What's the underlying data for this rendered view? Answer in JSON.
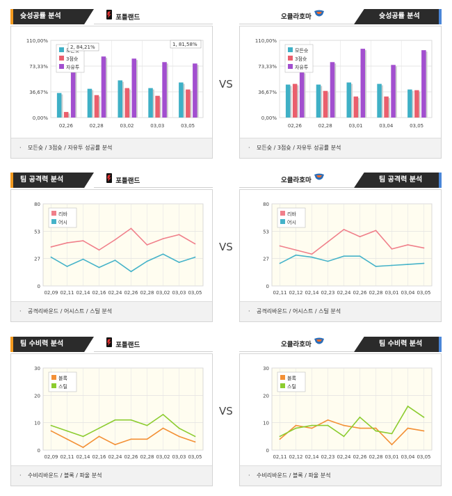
{
  "vs_label": "VS",
  "colors": {
    "accent_orange": "#f39a1f",
    "accent_blue": "#4a86d8",
    "header_bg": "#2b2b2b"
  },
  "panels": [
    {
      "id": "p1",
      "side": "left",
      "header": "슛성공률 분석",
      "team": "포틀랜드",
      "team_logo": "trail-blazers-logo",
      "footer": "모든슛 / 3점슛 / 자유투 성공률 분석"
    },
    {
      "id": "p2",
      "side": "right",
      "header": "슛성공률 분석",
      "team": "오클라호마",
      "team_logo": "thunder-logo",
      "footer": "모든슛 / 3점슛 / 자유투 성공률 분석"
    },
    {
      "id": "p3",
      "side": "left",
      "header": "팀 공격력 분석",
      "team": "포틀랜드",
      "team_logo": "trail-blazers-logo",
      "footer": "공격리바운드 / 어시스트 / 스틸 분석"
    },
    {
      "id": "p4",
      "side": "right",
      "header": "팀 공격력 분석",
      "team": "오클라호마",
      "team_logo": "thunder-logo",
      "footer": "공격리바운드 / 어시스트 / 스틸 분석"
    },
    {
      "id": "p5",
      "side": "left",
      "header": "팀 수비력 분석",
      "team": "포틀랜드",
      "team_logo": "trail-blazers-logo",
      "footer": "수비리바운드 / 블록 / 파울 분석"
    },
    {
      "id": "p6",
      "side": "right",
      "header": "팀 수비력 분석",
      "team": "오클라호마",
      "team_logo": "thunder-logo",
      "footer": "수비리바운드 / 블록 / 파울 분석"
    }
  ],
  "chart_data": [
    {
      "type": "bar",
      "categories": [
        "02,26",
        "02,28",
        "03,02",
        "03,03",
        "03,05"
      ],
      "ylim": [
        0,
        110
      ],
      "yticks": [
        "0,00%",
        "36,67%",
        "73,33%",
        "110,00%"
      ],
      "series": [
        {
          "name": "모든슛",
          "color": "#3fb0c6",
          "values": [
            35,
            41,
            53,
            42,
            50
          ]
        },
        {
          "name": "3점슛",
          "color": "#ea5f6d",
          "values": [
            8,
            32,
            42,
            31,
            40
          ]
        },
        {
          "name": "자유투",
          "color": "#a24fcf",
          "values": [
            84,
            87,
            84,
            79,
            77
          ]
        }
      ],
      "annotations": [
        "2, 84,21%",
        "1, 81,58%"
      ],
      "grid": true,
      "legend": "top-left"
    },
    {
      "type": "bar",
      "categories": [
        "02,26",
        "02,28",
        "03,01",
        "03,04",
        "03,05"
      ],
      "ylim": [
        0,
        110
      ],
      "yticks": [
        "0,00%",
        "36,67%",
        "73,33%",
        "110,00%"
      ],
      "series": [
        {
          "name": "모든슛",
          "color": "#3fb0c6",
          "values": [
            47,
            47,
            50,
            48,
            40
          ]
        },
        {
          "name": "3점슛",
          "color": "#ea5f6d",
          "values": [
            48,
            38,
            30,
            30,
            39
          ]
        },
        {
          "name": "자유투",
          "color": "#a24fcf",
          "values": [
            65,
            79,
            98,
            75,
            96
          ]
        }
      ],
      "grid": true,
      "legend": "top-left"
    },
    {
      "type": "line",
      "categories": [
        "02,09",
        "02,11",
        "02,14",
        "02,16",
        "02,24",
        "02,26",
        "02,28",
        "03,02",
        "03,03",
        "03,05"
      ],
      "ylim": [
        0,
        80
      ],
      "yticks": [
        "0",
        "27",
        "53",
        "80"
      ],
      "series": [
        {
          "name": "리바",
          "color": "#f07f8a",
          "values": [
            38,
            42,
            44,
            35,
            45,
            56,
            40,
            46,
            50,
            41
          ]
        },
        {
          "name": "어시",
          "color": "#45b3c9",
          "values": [
            28,
            19,
            26,
            18,
            25,
            14,
            24,
            31,
            23,
            28
          ]
        }
      ],
      "grid": true,
      "legend": "top-left"
    },
    {
      "type": "line",
      "categories": [
        "02,11",
        "02,12",
        "02,14",
        "02,23",
        "02,24",
        "02,26",
        "02,28",
        "03,01",
        "03,04",
        "03,05"
      ],
      "ylim": [
        0,
        80
      ],
      "yticks": [
        "0",
        "27",
        "53",
        "80"
      ],
      "series": [
        {
          "name": "리바",
          "color": "#f07f8a",
          "values": [
            39,
            35,
            31,
            43,
            55,
            48,
            54,
            36,
            40,
            37
          ]
        },
        {
          "name": "어시",
          "color": "#45b3c9",
          "values": [
            22,
            30,
            28,
            24,
            29,
            29,
            19,
            20,
            21,
            22
          ]
        }
      ],
      "grid": true,
      "legend": "top-left"
    },
    {
      "type": "line",
      "categories": [
        "02,09",
        "02,11",
        "02,14",
        "02,16",
        "02,24",
        "02,26",
        "02,28",
        "03,02",
        "03,03",
        "03,05"
      ],
      "ylim": [
        0,
        30
      ],
      "yticks": [
        "0",
        "10",
        "20",
        "30"
      ],
      "series": [
        {
          "name": "블록",
          "color": "#f39035",
          "values": [
            7,
            4,
            1,
            5,
            2,
            4,
            4,
            8,
            5,
            3
          ]
        },
        {
          "name": "스틸",
          "color": "#8ccc2f",
          "values": [
            9,
            7,
            5,
            8,
            11,
            11,
            9,
            13,
            8,
            5
          ]
        }
      ],
      "grid": true,
      "legend": "top-left"
    },
    {
      "type": "line",
      "categories": [
        "02,11",
        "02,12",
        "02,14",
        "02,23",
        "02,24",
        "02,26",
        "02,28",
        "03,01",
        "03,04",
        "03,05"
      ],
      "ylim": [
        0,
        30
      ],
      "yticks": [
        "0",
        "10",
        "20",
        "30"
      ],
      "series": [
        {
          "name": "블록",
          "color": "#f39035",
          "values": [
            4,
            9,
            8,
            11,
            9,
            8,
            8,
            2,
            8,
            7
          ]
        },
        {
          "name": "스틸",
          "color": "#8ccc2f",
          "values": [
            5,
            8,
            9,
            9,
            5,
            12,
            7,
            6,
            16,
            12
          ]
        }
      ],
      "grid": true,
      "legend": "top-left"
    }
  ]
}
